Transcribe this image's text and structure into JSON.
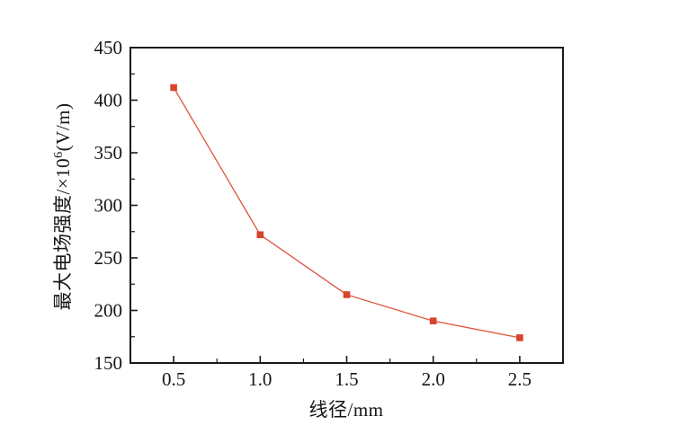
{
  "chart_data": {
    "type": "line",
    "title": "",
    "xlabel": "线径/mm",
    "ylabel": "最大电场强度/×10^6(V/m)",
    "ylabel_prefix": "最大电场强度/×10",
    "ylabel_sup": "6",
    "ylabel_suffix": "(V/m)",
    "xlim": [
      0.25,
      2.75
    ],
    "ylim": [
      150,
      450
    ],
    "grid": false,
    "legend_position": "none",
    "marker": "square",
    "series": [
      {
        "name": "最大电场强度",
        "x": [
          0.5,
          1.0,
          1.5,
          2.0,
          2.5
        ],
        "y": [
          412,
          272,
          215,
          190,
          174
        ]
      }
    ],
    "x_major_ticks": [
      0.5,
      1.0,
      1.5,
      2.0,
      2.5
    ],
    "x_tick_labels": [
      "0.5",
      "1.0",
      "1.5",
      "2.0",
      "2.5"
    ],
    "x_minor_ticks": [
      0.75,
      1.25,
      1.75,
      2.25
    ],
    "y_major_ticks": [
      150,
      200,
      250,
      300,
      350,
      400,
      450
    ],
    "y_tick_labels": [
      "150",
      "200",
      "250",
      "300",
      "350",
      "400",
      "450"
    ],
    "y_minor_ticks": [
      175,
      225,
      275,
      325,
      375,
      425
    ],
    "colors": {
      "marker": "#d8432e",
      "line": "#df523b",
      "axis": "#1a1a1a",
      "tick_label": "#161616",
      "background": "#ffffff"
    }
  }
}
